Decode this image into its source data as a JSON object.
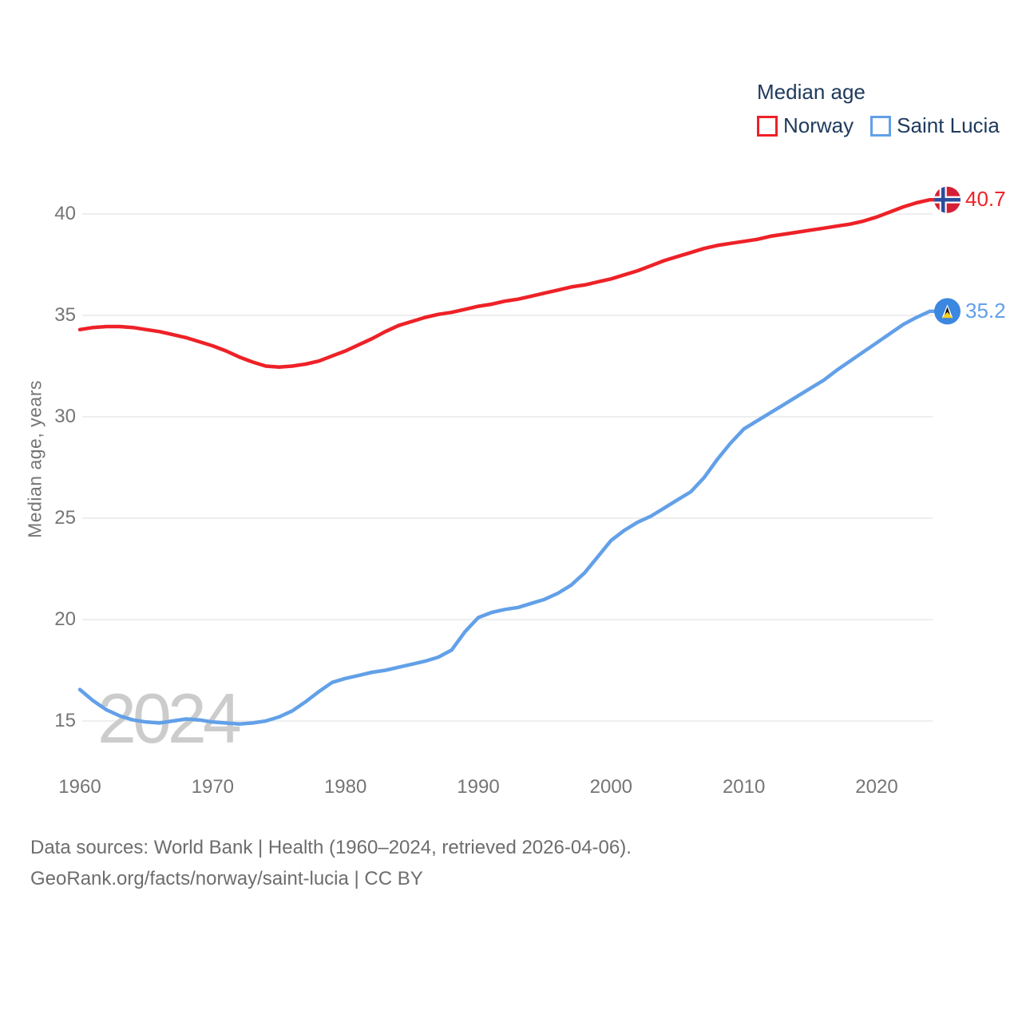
{
  "legend": {
    "title": "Median age",
    "items": [
      {
        "label": "Norway",
        "color": "#ee2127"
      },
      {
        "label": "Saint Lucia",
        "color": "#62a0e8"
      }
    ]
  },
  "watermark": "2024",
  "footer": {
    "line1": "Data sources: World Bank | Health (1960–2024, retrieved 2026-04-06).",
    "line2": "GeoRank.org/facts/norway/saint-lucia | CC BY"
  },
  "colors": {
    "norway_line": "#ee2127",
    "saint_lucia_line": "#62a0e8",
    "gridline": "#e9e9e9",
    "axis_text": "#757575",
    "legend_text": "#1e3a5c",
    "watermark_text": "#cccccc",
    "footer_text": "#6d6d6d"
  },
  "flag_colors": {
    "norway": {
      "background": "#d61f36",
      "cross": "#2a4d9b",
      "cross_outline": "#ffffff"
    },
    "saint_lucia": {
      "background": "#3c87e0",
      "triangle_black": "#15100c",
      "triangle_white": "#ffffff",
      "triangle_yellow": "#f5d01f"
    }
  },
  "chart_data": {
    "type": "line",
    "title": "Median age",
    "xlabel": "",
    "ylabel": "Median age, years",
    "grid": "horizontal",
    "legend_position": "top-right",
    "x_ticks": [
      1960,
      1970,
      1980,
      1990,
      2000,
      2010,
      2020
    ],
    "y_ticks": [
      15,
      20,
      25,
      30,
      35,
      40
    ],
    "ylim": [
      13,
      42
    ],
    "xlim": [
      1960,
      2024
    ],
    "x": [
      1960,
      1961,
      1962,
      1963,
      1964,
      1965,
      1966,
      1967,
      1968,
      1969,
      1970,
      1971,
      1972,
      1973,
      1974,
      1975,
      1976,
      1977,
      1978,
      1979,
      1980,
      1981,
      1982,
      1983,
      1984,
      1985,
      1986,
      1987,
      1988,
      1989,
      1990,
      1991,
      1992,
      1993,
      1994,
      1995,
      1996,
      1997,
      1998,
      1999,
      2000,
      2001,
      2002,
      2003,
      2004,
      2005,
      2006,
      2007,
      2008,
      2009,
      2010,
      2011,
      2012,
      2013,
      2014,
      2015,
      2016,
      2017,
      2018,
      2019,
      2020,
      2021,
      2022,
      2023,
      2024
    ],
    "series": [
      {
        "name": "Norway",
        "color": "#ee2127",
        "end_label": "40.7",
        "values": [
          34.3,
          34.4,
          34.45,
          34.45,
          34.4,
          34.3,
          34.2,
          34.05,
          33.9,
          33.7,
          33.5,
          33.25,
          32.95,
          32.7,
          32.5,
          32.45,
          32.5,
          32.6,
          32.75,
          33.0,
          33.25,
          33.55,
          33.85,
          34.2,
          34.5,
          34.7,
          34.9,
          35.05,
          35.15,
          35.3,
          35.45,
          35.55,
          35.7,
          35.8,
          35.95,
          36.1,
          36.25,
          36.4,
          36.5,
          36.65,
          36.8,
          37.0,
          37.2,
          37.45,
          37.7,
          37.9,
          38.1,
          38.3,
          38.45,
          38.55,
          38.65,
          38.75,
          38.9,
          39.0,
          39.1,
          39.2,
          39.3,
          39.4,
          39.5,
          39.65,
          39.85,
          40.1,
          40.35,
          40.55,
          40.7
        ]
      },
      {
        "name": "Saint Lucia",
        "color": "#62a0e8",
        "end_label": "35.2",
        "values": [
          16.55,
          16.0,
          15.55,
          15.25,
          15.05,
          14.95,
          14.9,
          15.0,
          15.1,
          15.05,
          14.95,
          14.9,
          14.85,
          14.9,
          15.0,
          15.2,
          15.5,
          15.95,
          16.45,
          16.9,
          17.1,
          17.25,
          17.4,
          17.5,
          17.65,
          17.8,
          17.95,
          18.15,
          18.5,
          19.4,
          20.1,
          20.35,
          20.5,
          20.6,
          20.8,
          21.0,
          21.3,
          21.7,
          22.3,
          23.1,
          23.9,
          24.4,
          24.8,
          25.1,
          25.5,
          25.9,
          26.3,
          27.0,
          27.9,
          28.7,
          29.4,
          29.8,
          30.2,
          30.6,
          31.0,
          31.4,
          31.8,
          32.3,
          32.75,
          33.2,
          33.65,
          34.1,
          34.55,
          34.9,
          35.2
        ]
      }
    ]
  }
}
